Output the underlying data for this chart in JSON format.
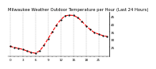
{
  "title": "Milwaukee Weather Outdoor Temperature per Hour (Last 24 Hours)",
  "hours": [
    0,
    1,
    2,
    3,
    4,
    5,
    6,
    7,
    8,
    9,
    10,
    11,
    12,
    13,
    14,
    15,
    16,
    17,
    18,
    19,
    20,
    21,
    22,
    23
  ],
  "temps": [
    25.5,
    24.8,
    24.2,
    23.5,
    22.5,
    21.5,
    21.0,
    22.5,
    26.0,
    30.5,
    35.0,
    39.5,
    43.0,
    45.5,
    46.0,
    45.8,
    44.5,
    42.0,
    39.0,
    36.5,
    34.5,
    33.5,
    32.5,
    32.0
  ],
  "line_color": "#ff0000",
  "marker_color": "#000000",
  "bg_color": "#ffffff",
  "grid_color": "#888888",
  "ylim": [
    19,
    48
  ],
  "yticks": [
    25,
    30,
    35,
    40,
    45
  ],
  "title_fontsize": 3.8,
  "tick_fontsize": 3.0,
  "line_width": 0.8,
  "marker_size": 1.2,
  "dashed_vertical_positions": [
    0,
    3,
    6,
    9,
    12,
    15,
    18,
    21
  ]
}
